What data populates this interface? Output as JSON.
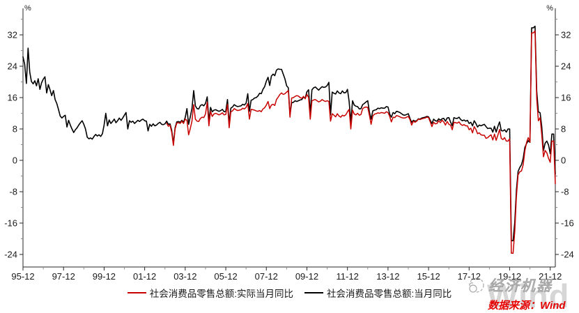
{
  "watermark": {
    "brand": "经济机器",
    "big_text": "Wind",
    "source": "数据来源：Wind"
  },
  "axes": {
    "unit_label": "%"
  },
  "chart_data": {
    "type": "line",
    "title": "",
    "xlabel": "",
    "ylabel": "%",
    "unit": "%",
    "start_month": "1995-12",
    "end_month": "2022-03",
    "months_total": 316,
    "grid": false,
    "legend_position": "bottom",
    "ylim": [
      -27.2,
      38.8
    ],
    "y_ticks_major": [
      -24,
      -16,
      -8,
      0,
      8,
      16,
      24,
      32
    ],
    "y_ticks_minor": [
      -20,
      -12,
      -4,
      4,
      12,
      20,
      28,
      36
    ],
    "x_tick_labels": [
      "95-12",
      "97-12",
      "99-12",
      "01-12",
      "03-12",
      "05-12",
      "07-12",
      "09-12",
      "11-12",
      "13-12",
      "15-12",
      "17-12",
      "19-12",
      "21-12"
    ],
    "x_tick_interval_months": 24,
    "series": [
      {
        "name": "社会消费品零售总额:实际当月同比",
        "color": "#c80000",
        "start_index": 85,
        "start_month": "2003-01",
        "values": [
          9.5,
          8.7,
          9.0,
          7.2,
          3.8,
          8.0,
          9.5,
          9.6,
          9.4,
          10.0,
          9.4,
          10.5,
          10.2,
          6.5,
          8.1,
          10.0,
          14.2,
          10.5,
          10.0,
          9.9,
          10.7,
          11.0,
          10.9,
          11.8,
          14.8,
          8.8,
          12.5,
          11.2,
          11.8,
          12.0,
          11.8,
          11.6,
          11.8,
          12.1,
          11.6,
          11.7,
          14.3,
          8.3,
          12.4,
          12.6,
          13.2,
          12.9,
          12.7,
          12.8,
          12.9,
          13.3,
          13.1,
          13.5,
          14.5,
          10.5,
          13.0,
          12.9,
          12.8,
          12.6,
          12.5,
          12.7,
          12.4,
          13.1,
          13.4,
          14.1,
          15.0,
          13.2,
          14.1,
          14.3,
          14.0,
          15.5,
          16.1,
          16.8,
          17.2,
          16.8,
          17.0,
          17.4,
          17.8,
          11.0,
          15.9,
          16.0,
          16.3,
          16.5,
          16.4,
          16.0,
          15.8,
          16.3,
          15.7,
          16.8,
          16.0,
          10.5,
          15.2,
          15.4,
          15.5,
          15.2,
          14.9,
          15.1,
          15.5,
          15.2,
          15.0,
          15.2,
          15.0,
          10.0,
          11.9,
          11.5,
          11.1,
          11.9,
          11.3,
          11.0,
          11.5,
          11.3,
          11.6,
          12.4,
          13.0,
          8.0,
          12.8,
          11.8,
          11.6,
          12.0,
          11.5,
          11.7,
          13.2,
          13.5,
          13.6,
          13.5,
          11.5,
          9.2,
          11.3,
          11.8,
          11.9,
          12.1,
          12.0,
          12.2,
          12.1,
          12.0,
          12.4,
          12.2,
          11.2,
          9.8,
          11.0,
          10.9,
          11.4,
          11.3,
          11.1,
          10.9,
          10.8,
          10.8,
          11.0,
          11.2,
          10.4,
          9.0,
          10.0,
          9.7,
          10.0,
          10.5,
          10.4,
          10.6,
          10.7,
          10.8,
          11.0,
          10.9,
          9.8,
          8.6,
          9.7,
          9.3,
          9.4,
          10.1,
          9.6,
          10.2,
          9.8,
          9.0,
          9.9,
          9.2,
          9.0,
          7.8,
          9.7,
          9.6,
          9.5,
          9.8,
          9.2,
          8.9,
          9.1,
          8.8,
          8.8,
          7.8,
          8.2,
          7.0,
          8.6,
          7.9,
          6.8,
          7.0,
          6.5,
          6.4,
          6.4,
          5.6,
          5.8,
          6.2,
          6.5,
          5.2,
          6.7,
          5.1,
          6.4,
          7.9,
          5.6,
          5.3,
          5.8,
          4.9,
          4.9,
          5.5,
          -23.7,
          -23.7,
          -18.1,
          -9.1,
          -3.7,
          -2.9,
          -2.7,
          -1.1,
          2.4,
          4.6,
          5.8,
          4.6,
          32.5,
          32.5,
          33.0,
          15.8,
          10.1,
          10.9,
          6.4,
          0.9,
          2.5,
          1.9,
          0.5,
          -0.5,
          4.9,
          4.9,
          -6.0
        ]
      },
      {
        "name": "社会消费品零售总额:当月同比",
        "color": "#000000",
        "start_index": 0,
        "start_month": "1995-12",
        "values": [
          26.4,
          24.5,
          19.6,
          28.6,
          22.5,
          20.1,
          19.5,
          20.3,
          19.0,
          20.8,
          18.1,
          19.8,
          20.7,
          21.3,
          17.2,
          19.3,
          18.0,
          16.5,
          17.8,
          15.5,
          14.5,
          13.0,
          11.3,
          10.8,
          11.2,
          11.5,
          8.5,
          10.2,
          9.0,
          8.0,
          7.1,
          7.8,
          8.3,
          9.0,
          9.6,
          10.1,
          9.2,
          8.0,
          5.9,
          5.5,
          5.7,
          5.4,
          6.1,
          6.6,
          6.2,
          6.5,
          6.1,
          6.8,
          9.0,
          12.0,
          8.8,
          10.3,
          9.4,
          9.9,
          10.5,
          9.6,
          10.1,
          10.8,
          10.2,
          10.8,
          11.5,
          12.2,
          8.0,
          10.1,
          9.7,
          10.0,
          9.4,
          9.8,
          10.2,
          9.9,
          10.3,
          10.5,
          10.1,
          10.0,
          7.5,
          9.2,
          8.7,
          9.3,
          8.8,
          9.0,
          9.4,
          9.7,
          9.2,
          9.1,
          9.3,
          10.0,
          9.2,
          9.3,
          7.7,
          4.3,
          8.3,
          9.8,
          9.9,
          9.7,
          10.2,
          9.7,
          10.9,
          13.2,
          9.2,
          11.1,
          13.2,
          17.8,
          13.9,
          13.2,
          13.1,
          14.0,
          14.2,
          13.9,
          14.5,
          16.2,
          10.0,
          13.5,
          12.4,
          12.8,
          12.9,
          12.7,
          12.5,
          12.7,
          13.0,
          12.4,
          12.5,
          15.5,
          9.4,
          13.3,
          13.6,
          14.2,
          13.9,
          13.7,
          13.8,
          13.9,
          14.3,
          14.1,
          14.6,
          17.0,
          12.5,
          15.3,
          15.5,
          15.9,
          16.0,
          16.4,
          17.1,
          17.0,
          18.1,
          18.8,
          20.2,
          21.2,
          19.1,
          21.5,
          22.0,
          21.6,
          23.0,
          23.3,
          23.2,
          23.2,
          22.0,
          20.8,
          19.0,
          18.5,
          11.6,
          14.7,
          14.8,
          15.2,
          15.0,
          15.2,
          15.4,
          15.5,
          16.2,
          15.8,
          17.5,
          18.0,
          12.0,
          18.0,
          18.5,
          18.7,
          18.3,
          17.9,
          18.4,
          18.8,
          18.6,
          18.7,
          19.1,
          19.9,
          11.6,
          17.4,
          17.1,
          16.9,
          17.7,
          17.2,
          17.0,
          17.7,
          17.2,
          17.3,
          18.1,
          15.0,
          9.8,
          15.2,
          14.1,
          13.8,
          13.7,
          13.1,
          13.2,
          14.2,
          14.5,
          14.9,
          15.2,
          12.3,
          10.5,
          12.6,
          12.8,
          12.9,
          13.3,
          13.2,
          13.4,
          13.3,
          13.3,
          13.7,
          13.6,
          11.8,
          11.0,
          12.2,
          11.9,
          12.5,
          12.4,
          12.2,
          11.9,
          11.6,
          11.5,
          11.7,
          11.9,
          10.7,
          9.7,
          10.2,
          10.0,
          10.1,
          10.6,
          10.5,
          10.8,
          10.9,
          11.0,
          11.2,
          11.1,
          10.2,
          9.4,
          10.5,
          10.1,
          10.0,
          10.6,
          10.2,
          10.6,
          10.7,
          10.0,
          10.8,
          10.9,
          9.8,
          8.8,
          10.9,
          10.7,
          10.7,
          11.0,
          10.4,
          10.1,
          10.3,
          10.0,
          10.2,
          9.4,
          9.7,
          8.8,
          10.1,
          9.4,
          8.5,
          9.0,
          8.8,
          9.0,
          9.2,
          8.6,
          8.1,
          8.2,
          8.2,
          7.2,
          8.7,
          7.2,
          8.6,
          9.8,
          7.6,
          7.5,
          7.8,
          7.2,
          8.0,
          8.0,
          -20.5,
          -20.5,
          -15.8,
          -7.5,
          -2.8,
          -1.8,
          -1.1,
          0.5,
          3.3,
          4.3,
          5.0,
          4.6,
          33.8,
          33.8,
          34.2,
          17.7,
          12.4,
          12.1,
          8.5,
          2.5,
          4.4,
          4.9,
          3.9,
          1.7,
          6.7,
          6.7,
          -3.5
        ]
      }
    ]
  }
}
